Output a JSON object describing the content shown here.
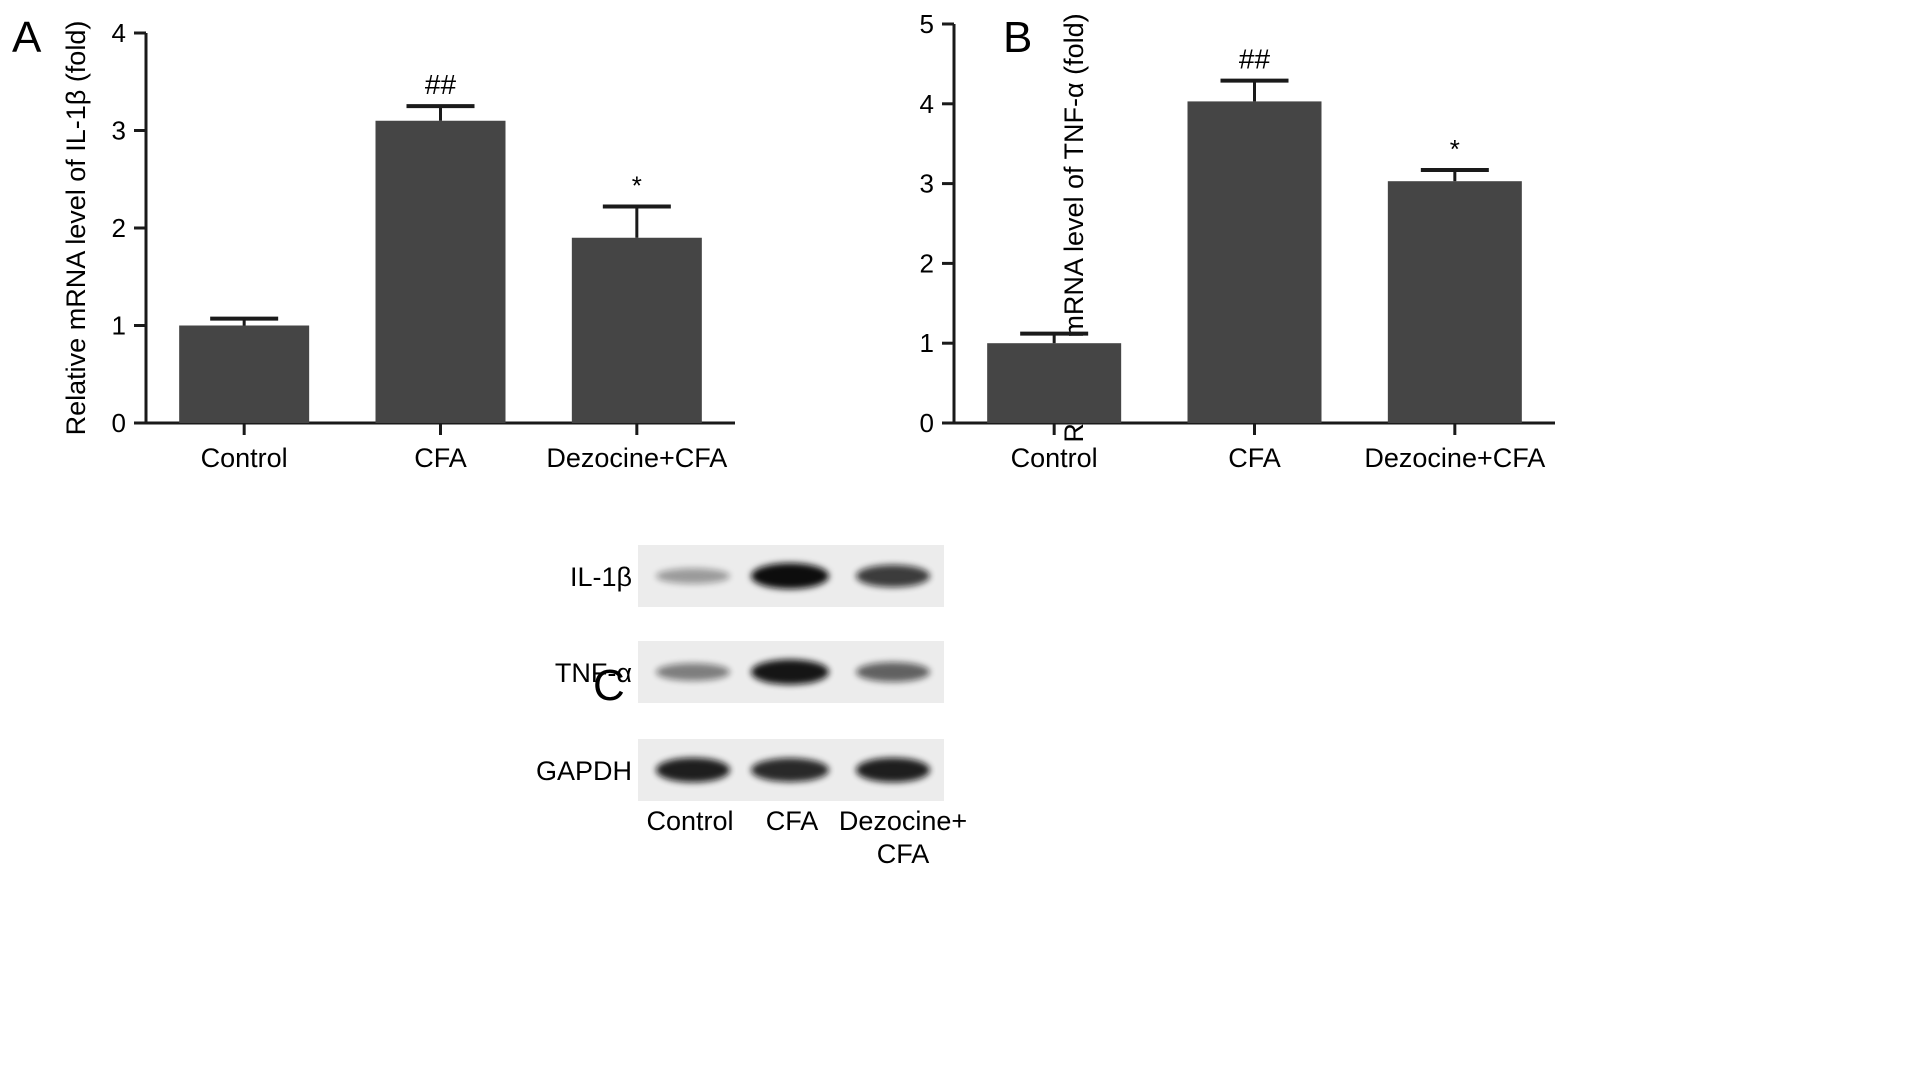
{
  "chart_data": [
    {
      "panel_label": "A",
      "type": "bar",
      "ylabel": "Relative mRNA level of IL-1β (fold)",
      "categories": [
        "Control",
        "CFA",
        "Dezocine+CFA"
      ],
      "values": [
        1.0,
        3.1,
        1.9
      ],
      "error_upper": [
        1.07,
        3.25,
        2.22
      ],
      "significance": [
        "",
        "##",
        "*"
      ],
      "ylim": [
        0,
        4
      ],
      "yticks": [
        0,
        1,
        2,
        3,
        4
      ],
      "bar_color": "#454545"
    },
    {
      "panel_label": "B",
      "type": "bar",
      "ylabel": "Relative mRNA level of TNF-α (fold)",
      "categories": [
        "Control",
        "CFA",
        "Dezocine+CFA"
      ],
      "values": [
        1.0,
        4.03,
        3.03
      ],
      "error_upper": [
        1.12,
        4.29,
        3.17
      ],
      "significance": [
        "",
        "##",
        "*"
      ],
      "ylim": [
        0,
        5
      ],
      "yticks": [
        0,
        1,
        2,
        3,
        4,
        5
      ],
      "bar_color": "#454545"
    }
  ],
  "blot": {
    "panel_label": "C",
    "rows": [
      {
        "label": "IL-1β",
        "intensities": [
          0.25,
          1.0,
          0.75
        ]
      },
      {
        "label": "TNF-α",
        "intensities": [
          0.4,
          0.95,
          0.55
        ]
      },
      {
        "label": "GAPDH",
        "intensities": [
          0.9,
          0.85,
          0.9
        ]
      }
    ],
    "lane_labels": [
      "Control",
      "CFA",
      "Dezocine+\nCFA"
    ]
  }
}
